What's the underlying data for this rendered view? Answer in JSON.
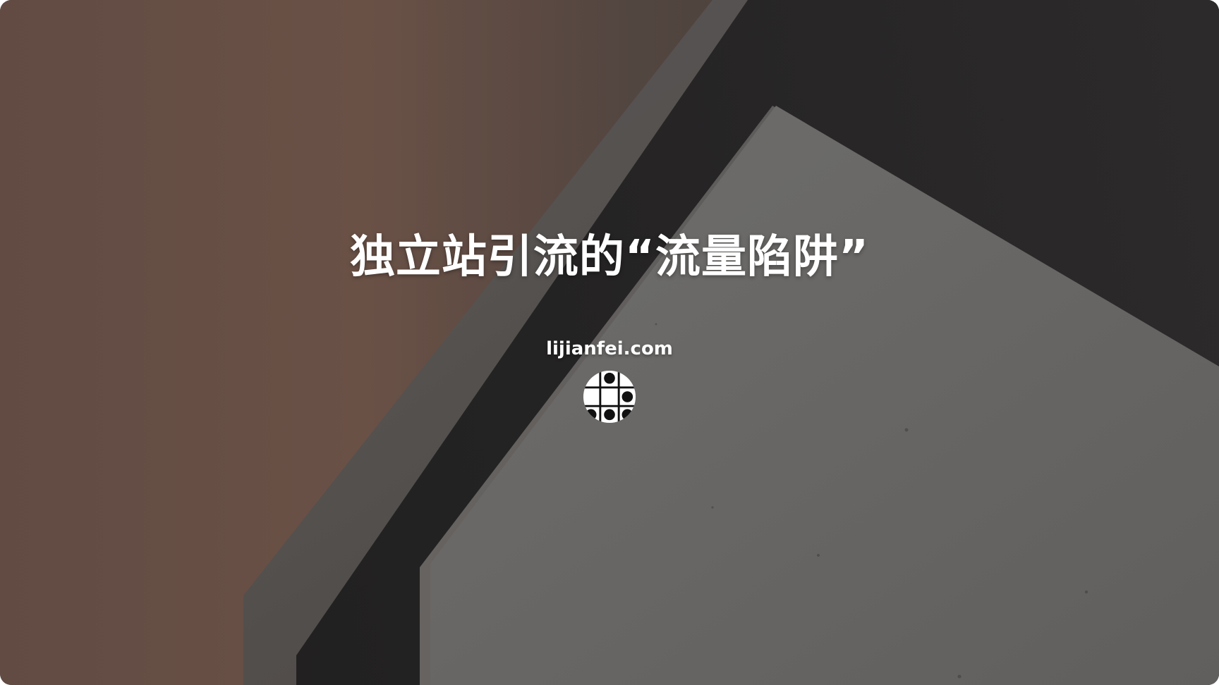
{
  "headline": {
    "title": "独立站引流的“流量陷阱”"
  },
  "footer": {
    "domain": "lijianfei.com"
  },
  "icons": {
    "logo": "dot-grid-logo-icon"
  },
  "colors": {
    "text": "#ffffff",
    "overlay_left": "#6d5449",
    "overlay_right": "#3a3939"
  }
}
